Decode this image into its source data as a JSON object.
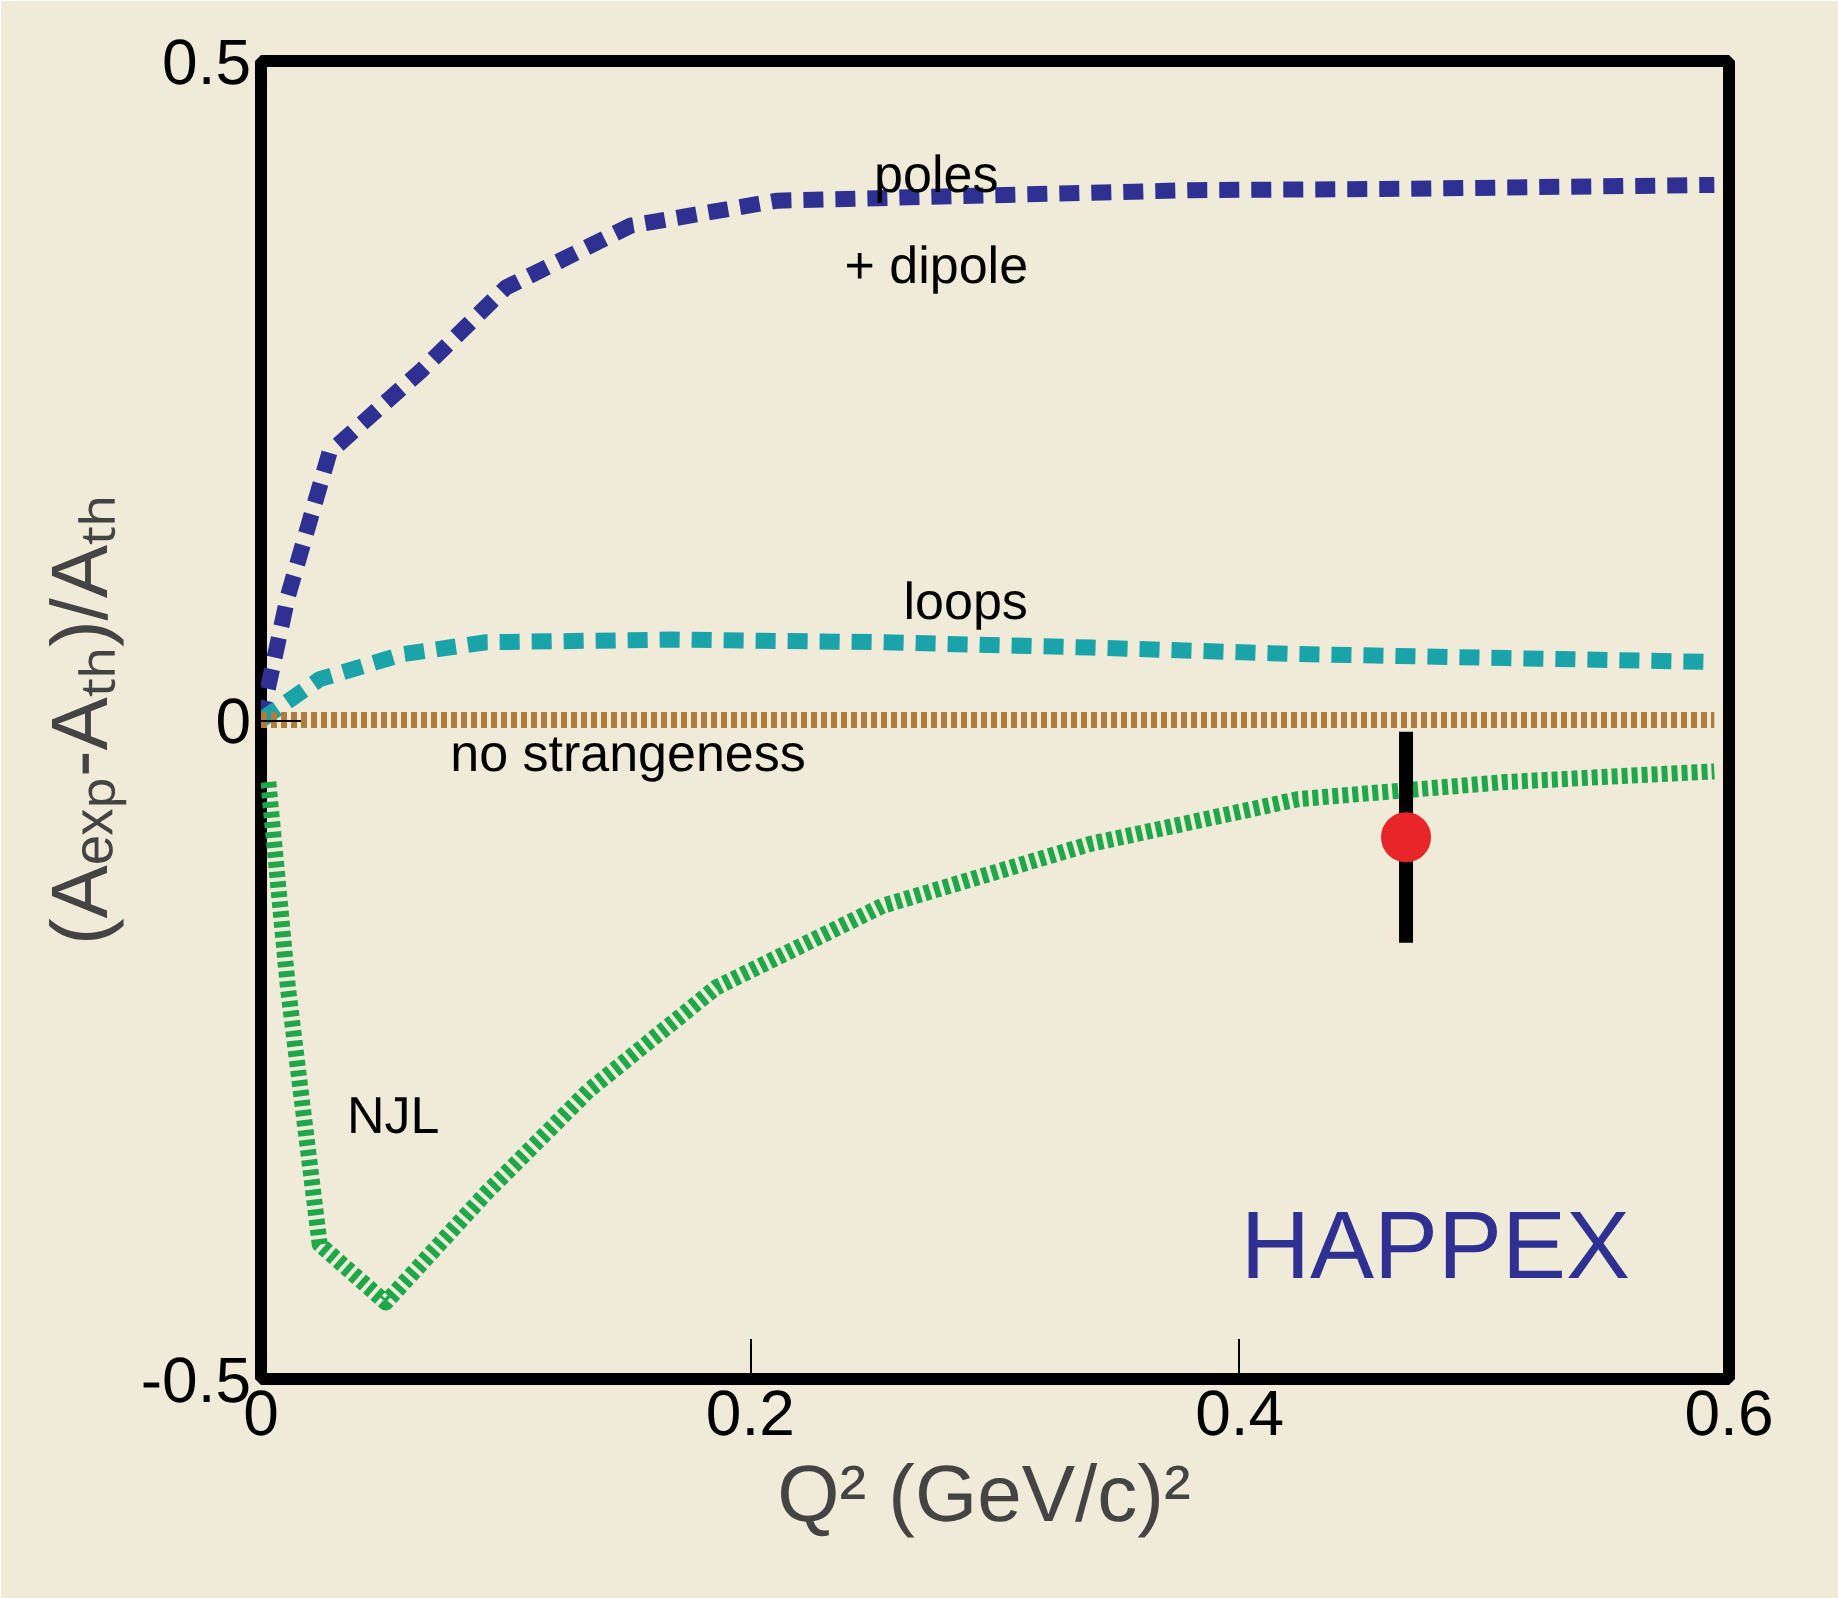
{
  "chart_data": {
    "type": "line",
    "xlabel": "Q²  (GeV/c)²",
    "ylabel": "(Aₑₓₚ-Aₜₕ)/Aₜₕ",
    "xlim": [
      0,
      0.6
    ],
    "ylim": [
      -0.5,
      0.5
    ],
    "xticks": [
      0,
      0.2,
      0.4,
      0.6
    ],
    "yticks": [
      -0.5,
      0,
      0.5
    ],
    "grid": false,
    "series": [
      {
        "color": "#2e3192",
        "line_style": "dashed",
        "x": [
          0,
          0.011,
          0.028,
          0.066,
          0.1,
          0.151,
          0.211,
          0.296,
          0.381,
          0.466,
          0.594
        ],
        "values": [
          0,
          0.094,
          0.203,
          0.266,
          0.328,
          0.375,
          0.394,
          0.398,
          0.402,
          0.403,
          0.406
        ]
      },
      {
        "color": "#1aa3a8",
        "line_style": "dashed",
        "x": [
          0,
          0.024,
          0.058,
          0.092,
          0.168,
          0.254,
          0.339,
          0.424,
          0.509,
          0.594
        ],
        "values": [
          0,
          0.031,
          0.05,
          0.059,
          0.061,
          0.059,
          0.055,
          0.05,
          0.047,
          0.044
        ]
      },
      {
        "color": "#b07c3a",
        "line_style": "dotted",
        "x": [
          0,
          0.594
        ],
        "values": [
          0,
          0
        ]
      },
      {
        "color": "#1fa84a",
        "line_style": "dotted",
        "x": [
          0.003,
          0.011,
          0.024,
          0.051,
          0.092,
          0.134,
          0.186,
          0.254,
          0.339,
          0.424,
          0.509,
          0.594
        ],
        "values": [
          -0.047,
          -0.203,
          -0.398,
          -0.442,
          -0.359,
          -0.281,
          -0.203,
          -0.141,
          -0.094,
          -0.06,
          -0.047,
          -0.039
        ]
      },
      {
        "type": "scatter",
        "marker": "circle",
        "color": "#e8262a",
        "x": [
          0.468
        ],
        "values": [
          -0.089
        ],
        "errors": [
          0.08
        ]
      }
    ],
    "annotations": [
      "poles",
      "+ dipole",
      "loops",
      "no strangeness",
      "NJL",
      "HAPPEX"
    ]
  }
}
